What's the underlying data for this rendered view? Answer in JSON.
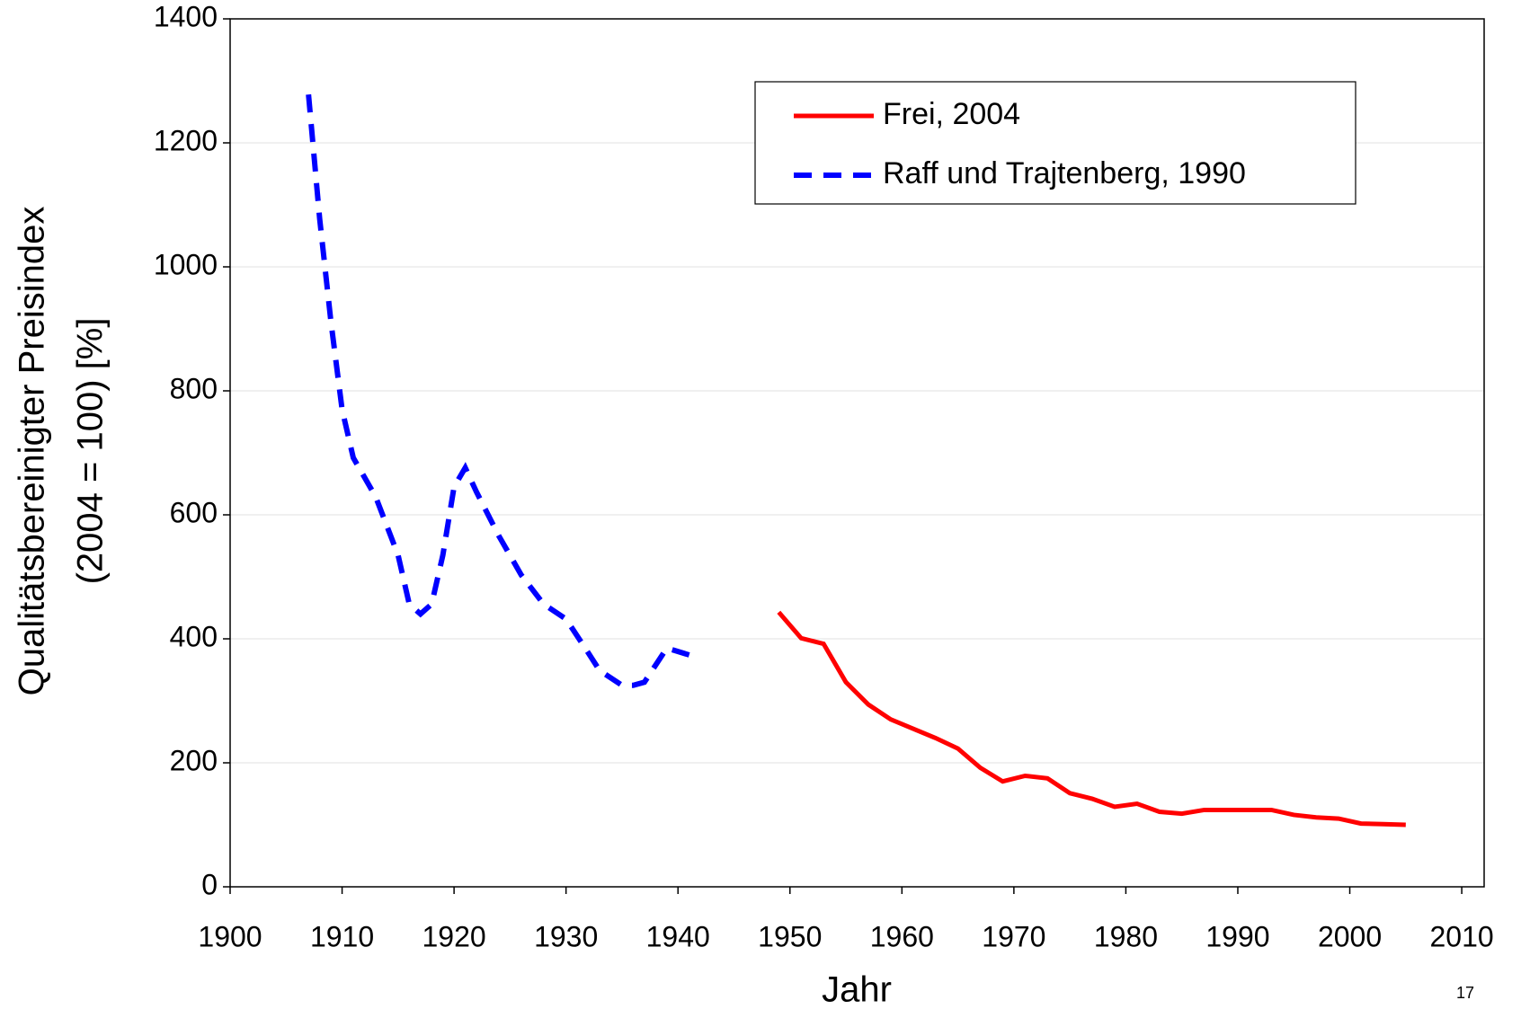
{
  "chart_data": {
    "type": "line",
    "x_label": "Jahr",
    "y_label": [
      "Qualitätsbereinigter Preisindex",
      "(2004 = 100) [%]"
    ],
    "page_number": "17",
    "xlim": [
      1900,
      2012
    ],
    "xticks": [
      1900,
      1910,
      1920,
      1930,
      1940,
      1950,
      1960,
      1970,
      1980,
      1990,
      2000,
      2010
    ],
    "ylim": [
      0,
      1400
    ],
    "yticks": [
      0,
      200,
      400,
      600,
      800,
      1000,
      1200,
      1400
    ],
    "grid": true,
    "legend": "top-right",
    "series": [
      {
        "name": "Frei, 2004",
        "color": "#ff0000",
        "style": "solid",
        "x": [
          1949,
          1951,
          1953,
          1955,
          1957,
          1959,
          1961,
          1963,
          1965,
          1967,
          1969,
          1971,
          1973,
          1975,
          1977,
          1979,
          1981,
          1983,
          1985,
          1987,
          1989,
          1991,
          1993,
          1995,
          1997,
          1999,
          2001,
          2003,
          2005
        ],
        "values": [
          443,
          401,
          392,
          330,
          294,
          270,
          255,
          240,
          223,
          192,
          170,
          179,
          175,
          151,
          142,
          129,
          134,
          121,
          118,
          124,
          124,
          124,
          124,
          116,
          112,
          110,
          102,
          101,
          100
        ]
      },
      {
        "name": "Raff und Trajtenberg, 1990",
        "color": "#0000ff",
        "style": "dashed",
        "x": [
          1907,
          1908,
          1909,
          1910,
          1911,
          1913,
          1915,
          1916,
          1917,
          1918,
          1919,
          1920,
          1921,
          1922,
          1924,
          1926,
          1928,
          1930,
          1932,
          1933,
          1935,
          1936,
          1937,
          1939,
          1941
        ],
        "values": [
          1278,
          1077,
          912,
          770,
          692,
          629,
          535,
          456,
          440,
          456,
          535,
          645,
          676,
          637,
          566,
          503,
          456,
          432,
          377,
          349,
          325,
          325,
          330,
          385,
          374
        ]
      }
    ]
  }
}
